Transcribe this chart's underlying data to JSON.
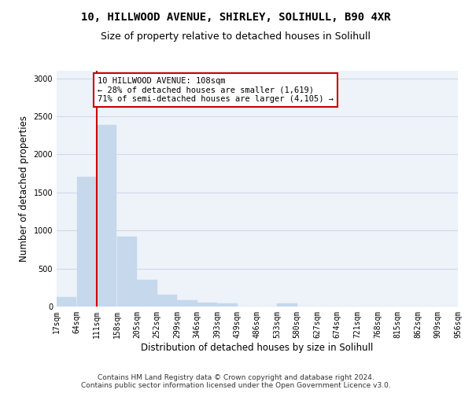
{
  "title_line1": "10, HILLWOOD AVENUE, SHIRLEY, SOLIHULL, B90 4XR",
  "title_line2": "Size of property relative to detached houses in Solihull",
  "xlabel": "Distribution of detached houses by size in Solihull",
  "ylabel": "Number of detached properties",
  "bar_color": "#c5d8ec",
  "grid_color": "#d0d8e8",
  "background_color": "#eef2f9",
  "property_line_x": 111,
  "annotation_line1": "10 HILLWOOD AVENUE: 108sqm",
  "annotation_line2": "← 28% of detached houses are smaller (1,619)",
  "annotation_line3": "71% of semi-detached houses are larger (4,105) →",
  "bin_edges": [
    17,
    64,
    111,
    158,
    205,
    252,
    299,
    346,
    393,
    439,
    486,
    533,
    580,
    627,
    674,
    721,
    768,
    815,
    862,
    909,
    956
  ],
  "bin_heights": [
    120,
    1700,
    2390,
    920,
    350,
    155,
    85,
    55,
    40,
    0,
    0,
    40,
    0,
    0,
    0,
    0,
    0,
    0,
    0,
    0
  ],
  "ylim": [
    0,
    3100
  ],
  "yticks": [
    0,
    500,
    1000,
    1500,
    2000,
    2500,
    3000
  ],
  "footer_line1": "Contains HM Land Registry data © Crown copyright and database right 2024.",
  "footer_line2": "Contains public sector information licensed under the Open Government Licence v3.0.",
  "annotation_box_color": "#ffffff",
  "annotation_box_edge_color": "#cc0000",
  "property_line_color": "#cc0000",
  "title_fontsize": 10,
  "subtitle_fontsize": 9,
  "axis_label_fontsize": 8.5,
  "tick_fontsize": 7,
  "annotation_fontsize": 7.5,
  "footer_fontsize": 6.5
}
